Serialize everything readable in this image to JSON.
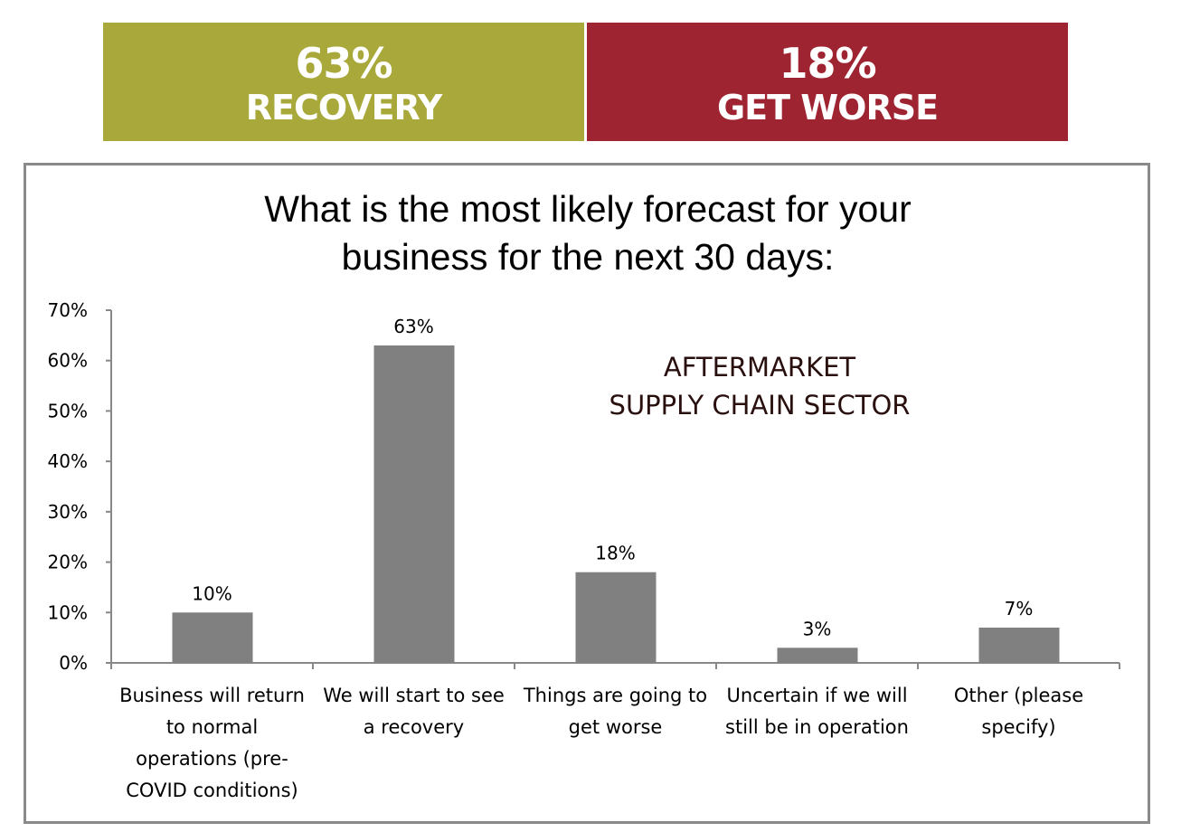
{
  "banners": [
    {
      "pct": "63%",
      "label": "RECOVERY",
      "color": "#A8A93A"
    },
    {
      "pct": "18%",
      "label": "GET WORSE",
      "color": "#9E2431"
    }
  ],
  "chart_data": {
    "type": "bar",
    "title": "What is the most likely forecast for your business for the next 30 days:",
    "annotation": [
      "AFTERMARKET",
      "SUPPLY CHAIN SECTOR"
    ],
    "categories": [
      "Business will return to normal operations (pre-COVID conditions)",
      "We will start to see a recovery",
      "Things are going to get worse",
      "Uncertain if we will still be in operation",
      "Other (please specify)"
    ],
    "values": [
      10,
      63,
      18,
      3,
      7
    ],
    "data_labels": [
      "10%",
      "63%",
      "18%",
      "3%",
      "7%"
    ],
    "ylim": [
      0,
      70
    ],
    "yticks": [
      "0%",
      "10%",
      "20%",
      "30%",
      "40%",
      "50%",
      "60%",
      "70%"
    ],
    "bar_color": "#808080",
    "grid": false
  }
}
